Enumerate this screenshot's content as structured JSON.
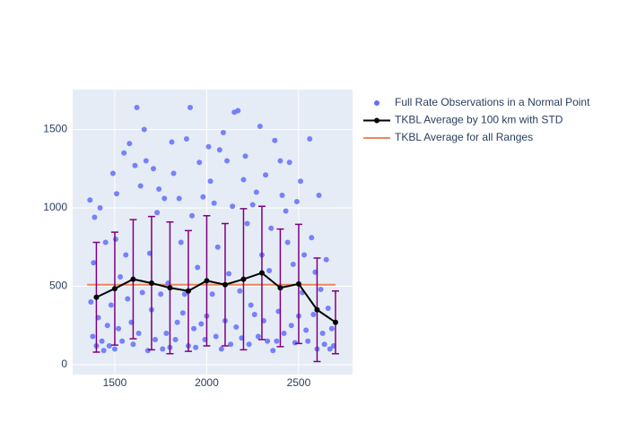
{
  "chart_data": {
    "type": "scatter",
    "xlim": [
      1271,
      2793
    ],
    "ylim": [
      -63,
      1754
    ],
    "xticks": [
      1500,
      2000,
      2500
    ],
    "yticks": [
      0,
      500,
      1000,
      1500
    ],
    "grid": true,
    "legend": "right",
    "series": [
      {
        "name": "Full Rate Observations in a Normal Point",
        "color": "#636efa",
        "mode": "markers",
        "x": [
          1365,
          1370,
          1380,
          1385,
          1390,
          1400,
          1410,
          1420,
          1430,
          1440,
          1450,
          1460,
          1470,
          1480,
          1490,
          1500,
          1505,
          1510,
          1520,
          1530,
          1540,
          1550,
          1560,
          1570,
          1580,
          1590,
          1600,
          1610,
          1620,
          1630,
          1640,
          1650,
          1660,
          1670,
          1680,
          1690,
          1700,
          1710,
          1720,
          1730,
          1740,
          1750,
          1760,
          1770,
          1780,
          1790,
          1800,
          1810,
          1820,
          1830,
          1840,
          1850,
          1860,
          1870,
          1880,
          1890,
          1900,
          1910,
          1920,
          1930,
          1940,
          1950,
          1960,
          1970,
          1980,
          1990,
          2000,
          2010,
          2020,
          2030,
          2040,
          2050,
          2060,
          2070,
          2080,
          2090,
          2100,
          2110,
          2120,
          2130,
          2140,
          2150,
          2160,
          2170,
          2180,
          2190,
          2200,
          2210,
          2220,
          2230,
          2240,
          2250,
          2260,
          2270,
          2280,
          2290,
          2300,
          2310,
          2320,
          2330,
          2340,
          2350,
          2360,
          2370,
          2380,
          2390,
          2400,
          2410,
          2420,
          2430,
          2440,
          2450,
          2460,
          2470,
          2480,
          2490,
          2500,
          2510,
          2520,
          2530,
          2540,
          2550,
          2560,
          2570,
          2580,
          2590,
          2600,
          2610,
          2620,
          2630,
          2640,
          2650,
          2660,
          2670,
          2680,
          2690
        ],
        "y": [
          1050,
          400,
          180,
          650,
          940,
          120,
          300,
          1000,
          150,
          90,
          780,
          250,
          120,
          380,
          1220,
          100,
          800,
          1090,
          230,
          560,
          150,
          1350,
          700,
          420,
          1410,
          270,
          130,
          1270,
          1640,
          200,
          1140,
          460,
          1500,
          1300,
          90,
          710,
          350,
          1250,
          160,
          970,
          1120,
          450,
          100,
          1060,
          200,
          520,
          110,
          1420,
          1220,
          160,
          270,
          1060,
          780,
          330,
          450,
          1440,
          120,
          1640,
          950,
          230,
          110,
          620,
          1290,
          260,
          1070,
          160,
          310,
          1390,
          1170,
          450,
          1030,
          180,
          750,
          1370,
          100,
          1480,
          280,
          1300,
          580,
          130,
          1010,
          1610,
          240,
          1620,
          470,
          170,
          1180,
          1330,
          900,
          130,
          380,
          1020,
          320,
          1100,
          180,
          1520,
          700,
          280,
          1210,
          150,
          600,
          870,
          90,
          1430,
          150,
          340,
          1300,
          1080,
          200,
          980,
          780,
          1290,
          250,
          640,
          140,
          1040,
          310,
          1170,
          460,
          700,
          220,
          150,
          1440,
          810,
          320,
          590,
          100,
          1080,
          480,
          200,
          130,
          670,
          360,
          100,
          230,
          120
        ]
      },
      {
        "name": "TKBL Average by 100 km with STD",
        "color": "#000000",
        "mode": "lines+markers",
        "error_color": "#800080",
        "x": [
          1400,
          1500,
          1600,
          1700,
          1800,
          1900,
          2000,
          2100,
          2200,
          2300,
          2400,
          2500,
          2600,
          2700
        ],
        "y": [
          430,
          485,
          545,
          520,
          490,
          470,
          535,
          510,
          545,
          585,
          490,
          515,
          350,
          270
        ],
        "errors": [
          350,
          360,
          380,
          425,
          420,
          385,
          415,
          390,
          450,
          425,
          375,
          380,
          330,
          200
        ]
      },
      {
        "name": "TKBL Average for all Ranges",
        "color": "#f0845c",
        "mode": "lines",
        "x": [
          1350,
          2700
        ],
        "y": [
          510,
          510
        ]
      }
    ]
  }
}
